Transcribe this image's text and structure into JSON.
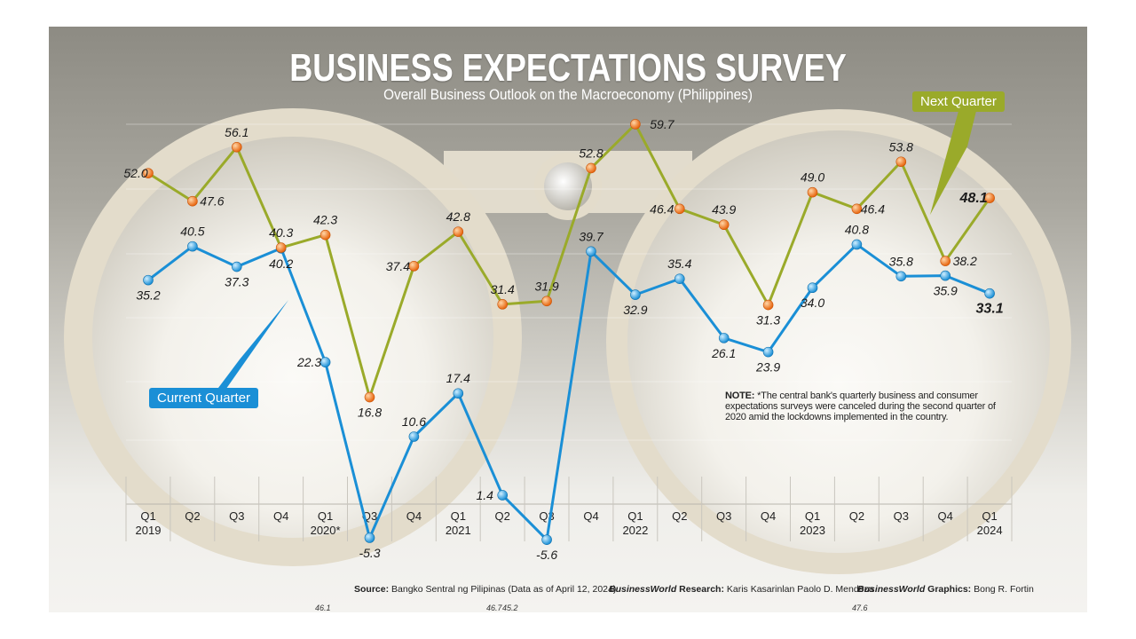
{
  "title": "BUSINESS EXPECTATIONS SURVEY",
  "subtitle": "Overall Business Outlook on the Macroeconomy (Philippines)",
  "chart_data": {
    "type": "line",
    "title": "BUSINESS EXPECTATIONS SURVEY",
    "subtitle": "Overall Business Outlook on the Macroeconomy (Philippines)",
    "categories": [
      "Q1 2019",
      "Q2",
      "Q3",
      "Q4",
      "Q1 2020*",
      "Q3",
      "Q4",
      "Q1 2021",
      "Q2",
      "Q3",
      "Q4",
      "Q1 2022",
      "Q2",
      "Q3",
      "Q4",
      "Q1 2023",
      "Q2",
      "Q3",
      "Q4",
      "Q1 2024"
    ],
    "tick_labels": [
      [
        "Q1",
        "2019"
      ],
      [
        "Q2",
        ""
      ],
      [
        "Q3",
        ""
      ],
      [
        "Q4",
        ""
      ],
      [
        "Q1",
        "2020*"
      ],
      [
        "Q3",
        ""
      ],
      [
        "Q4",
        ""
      ],
      [
        "Q1",
        "2021"
      ],
      [
        "Q2",
        ""
      ],
      [
        "Q3",
        ""
      ],
      [
        "Q4",
        ""
      ],
      [
        "Q1",
        "2022"
      ],
      [
        "Q2",
        ""
      ],
      [
        "Q3",
        ""
      ],
      [
        "Q4",
        ""
      ],
      [
        "Q1",
        "2023"
      ],
      [
        "Q2",
        ""
      ],
      [
        "Q3",
        ""
      ],
      [
        "Q4",
        ""
      ],
      [
        "Q1",
        "2024"
      ]
    ],
    "series": [
      {
        "name": "Current Quarter",
        "color": "#1a8fd6",
        "values": [
          35.2,
          40.5,
          37.3,
          40.2,
          22.3,
          -5.3,
          10.6,
          17.4,
          1.4,
          -5.6,
          39.7,
          32.9,
          35.4,
          26.1,
          23.9,
          34.0,
          40.8,
          35.8,
          35.9,
          33.1
        ]
      },
      {
        "name": "Next Quarter",
        "color": "#9aaa2a",
        "marker_color": "#f07f1a",
        "values": [
          52.0,
          47.6,
          56.1,
          40.3,
          42.3,
          16.8,
          37.4,
          42.8,
          31.4,
          31.9,
          52.8,
          59.7,
          46.4,
          43.9,
          31.3,
          49.0,
          46.4,
          53.8,
          38.2,
          48.1
        ]
      }
    ],
    "ylim": [
      -6,
      60
    ],
    "grid": true,
    "legend": "inline callouts"
  },
  "legend": {
    "current": "Current Quarter",
    "next": "Next Quarter"
  },
  "note": {
    "label": "NOTE:",
    "text": " *The central bank's quarterly business and consumer expectations surveys were canceled during the second quarter of 2020 amid the lockdowns implemented in the country."
  },
  "credits": {
    "source_label": "Source:",
    "source": " Bangko Sentral ng Pilipinas (Data as of April 12, 2024)",
    "research_brand": "BusinessWorld",
    "research_label": " Research:",
    "research": " Karis Kasarinlan Paolo D. Mendoza",
    "graphics_brand": "BusinessWorld",
    "graphics_label": " Graphics:",
    "graphics": " Bong R. Fortin"
  },
  "artifacts": [
    "46.1",
    "46.7",
    "45.2",
    "47.6"
  ]
}
